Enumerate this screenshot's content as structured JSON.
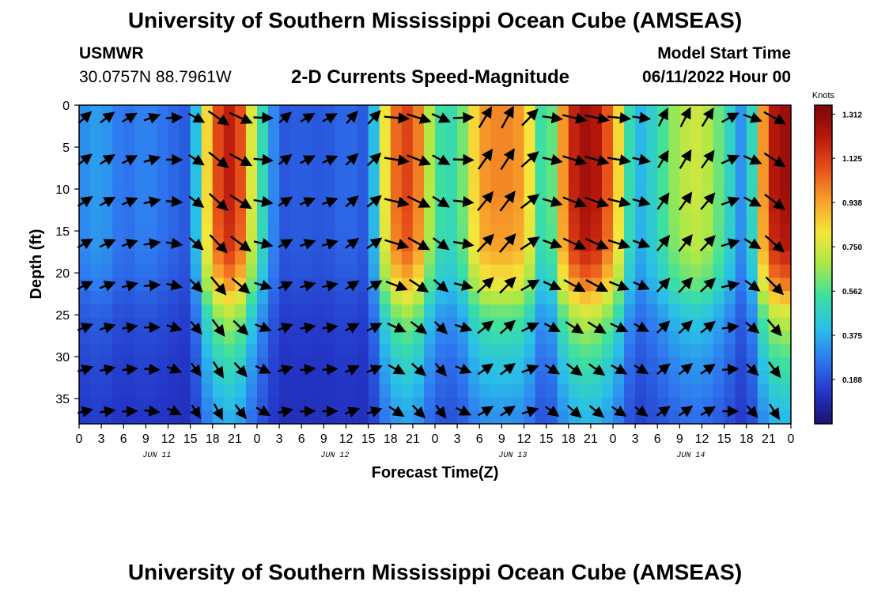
{
  "header": {
    "title": "University of Southern Mississippi Ocean Cube (AMSEAS)",
    "station": "USMWR",
    "coordinates": "30.0757N  88.7961W",
    "plot_title": "2-D Currents Speed-Magnitude",
    "model_start_label": "Model Start Time",
    "model_start_value": "06/11/2022 Hour 00"
  },
  "footer": {
    "title": "University of Southern Mississippi Ocean Cube (AMSEAS)"
  },
  "chart_data": {
    "type": "heatmap",
    "title": "2-D Currents Speed-Magnitude",
    "xlabel": "Forecast Time(Z)",
    "ylabel": "Depth (ft)",
    "x_range_hours": [
      0,
      96
    ],
    "ylim": [
      0,
      38
    ],
    "y_ticks": [
      0,
      5,
      10,
      15,
      20,
      25,
      30,
      35
    ],
    "x_tick_labels": [
      "0",
      "3",
      "6",
      "9",
      "12",
      "15",
      "18",
      "21",
      "0",
      "3",
      "6",
      "9",
      "12",
      "15",
      "18",
      "21",
      "0",
      "3",
      "6",
      "9",
      "12",
      "15",
      "18",
      "21",
      "0",
      "3",
      "6",
      "9",
      "12",
      "15",
      "18",
      "21",
      "0"
    ],
    "day_labels": [
      {
        "label": "JUN 11",
        "hour": 10.5
      },
      {
        "label": "JUN 12",
        "hour": 34.5
      },
      {
        "label": "JUN 13",
        "hour": 58.5
      },
      {
        "label": "JUN 14",
        "hour": 82.5
      }
    ],
    "colorbar": {
      "unit": "Knots",
      "min": 0.0,
      "max": 1.35,
      "ticks": [
        "1.312",
        "1.125",
        "0.938",
        "0.750",
        "0.562",
        "0.375",
        "0.188"
      ],
      "colors": [
        "#1a1070",
        "#2436c8",
        "#2f78f0",
        "#29c0e8",
        "#3ce0a0",
        "#a8e848",
        "#f5e63a",
        "#f7a02a",
        "#e8501a",
        "#b8180c",
        "#7a0606"
      ]
    },
    "depth_profile": [
      {
        "depth": 0,
        "factor": 1.0
      },
      {
        "depth": 10,
        "factor": 1.0
      },
      {
        "depth": 17,
        "factor": 0.95
      },
      {
        "depth": 21,
        "factor": 0.8
      },
      {
        "depth": 25,
        "factor": 0.55
      },
      {
        "depth": 30,
        "factor": 0.4
      },
      {
        "depth": 38,
        "factor": 0.25
      }
    ],
    "surface_speed_series": [
      {
        "hour": 0,
        "speed": 0.3
      },
      {
        "hour": 3,
        "speed": 0.35
      },
      {
        "hour": 6,
        "speed": 0.25
      },
      {
        "hour": 9,
        "speed": 0.3
      },
      {
        "hour": 12,
        "speed": 0.25
      },
      {
        "hour": 15,
        "speed": 0.2
      },
      {
        "hour": 18,
        "speed": 1.05
      },
      {
        "hour": 21,
        "speed": 1.25
      },
      {
        "hour": 24,
        "speed": 0.6
      },
      {
        "hour": 27,
        "speed": 0.2
      },
      {
        "hour": 30,
        "speed": 0.22
      },
      {
        "hour": 33,
        "speed": 0.2
      },
      {
        "hour": 36,
        "speed": 0.25
      },
      {
        "hour": 39,
        "speed": 0.2
      },
      {
        "hour": 42,
        "speed": 1.0
      },
      {
        "hour": 45,
        "speed": 1.15
      },
      {
        "hour": 48,
        "speed": 0.55
      },
      {
        "hour": 51,
        "speed": 0.5
      },
      {
        "hour": 54,
        "speed": 0.95
      },
      {
        "hour": 57,
        "speed": 1.0
      },
      {
        "hour": 60,
        "speed": 0.95
      },
      {
        "hour": 63,
        "speed": 0.4
      },
      {
        "hour": 66,
        "speed": 1.15
      },
      {
        "hour": 69,
        "speed": 1.3
      },
      {
        "hour": 72,
        "speed": 1.0
      },
      {
        "hour": 75,
        "speed": 0.35
      },
      {
        "hour": 78,
        "speed": 0.5
      },
      {
        "hour": 81,
        "speed": 0.7
      },
      {
        "hour": 84,
        "speed": 0.75
      },
      {
        "hour": 87,
        "speed": 0.55
      },
      {
        "hour": 90,
        "speed": 0.25
      },
      {
        "hour": 93,
        "speed": 1.2
      },
      {
        "hour": 96,
        "speed": 1.3
      }
    ],
    "vector_directions": [
      {
        "hour": 0,
        "deg": 60
      },
      {
        "hour": 6,
        "deg": 70
      },
      {
        "hour": 12,
        "deg": 90
      },
      {
        "hour": 15,
        "deg": 130
      },
      {
        "hour": 18,
        "deg": 140
      },
      {
        "hour": 24,
        "deg": 120
      },
      {
        "hour": 27,
        "deg": 60
      },
      {
        "hour": 33,
        "deg": 80
      },
      {
        "hour": 39,
        "deg": 40
      },
      {
        "hour": 42,
        "deg": 105
      },
      {
        "hour": 48,
        "deg": 130
      },
      {
        "hour": 51,
        "deg": 120
      },
      {
        "hour": 54,
        "deg": 45
      },
      {
        "hour": 60,
        "deg": 40
      },
      {
        "hour": 63,
        "deg": 110
      },
      {
        "hour": 69,
        "deg": 120
      },
      {
        "hour": 72,
        "deg": 100
      },
      {
        "hour": 75,
        "deg": 135
      },
      {
        "hour": 78,
        "deg": 40
      },
      {
        "hour": 84,
        "deg": 40
      },
      {
        "hour": 87,
        "deg": 60
      },
      {
        "hour": 90,
        "deg": 120
      },
      {
        "hour": 96,
        "deg": 140
      }
    ]
  }
}
